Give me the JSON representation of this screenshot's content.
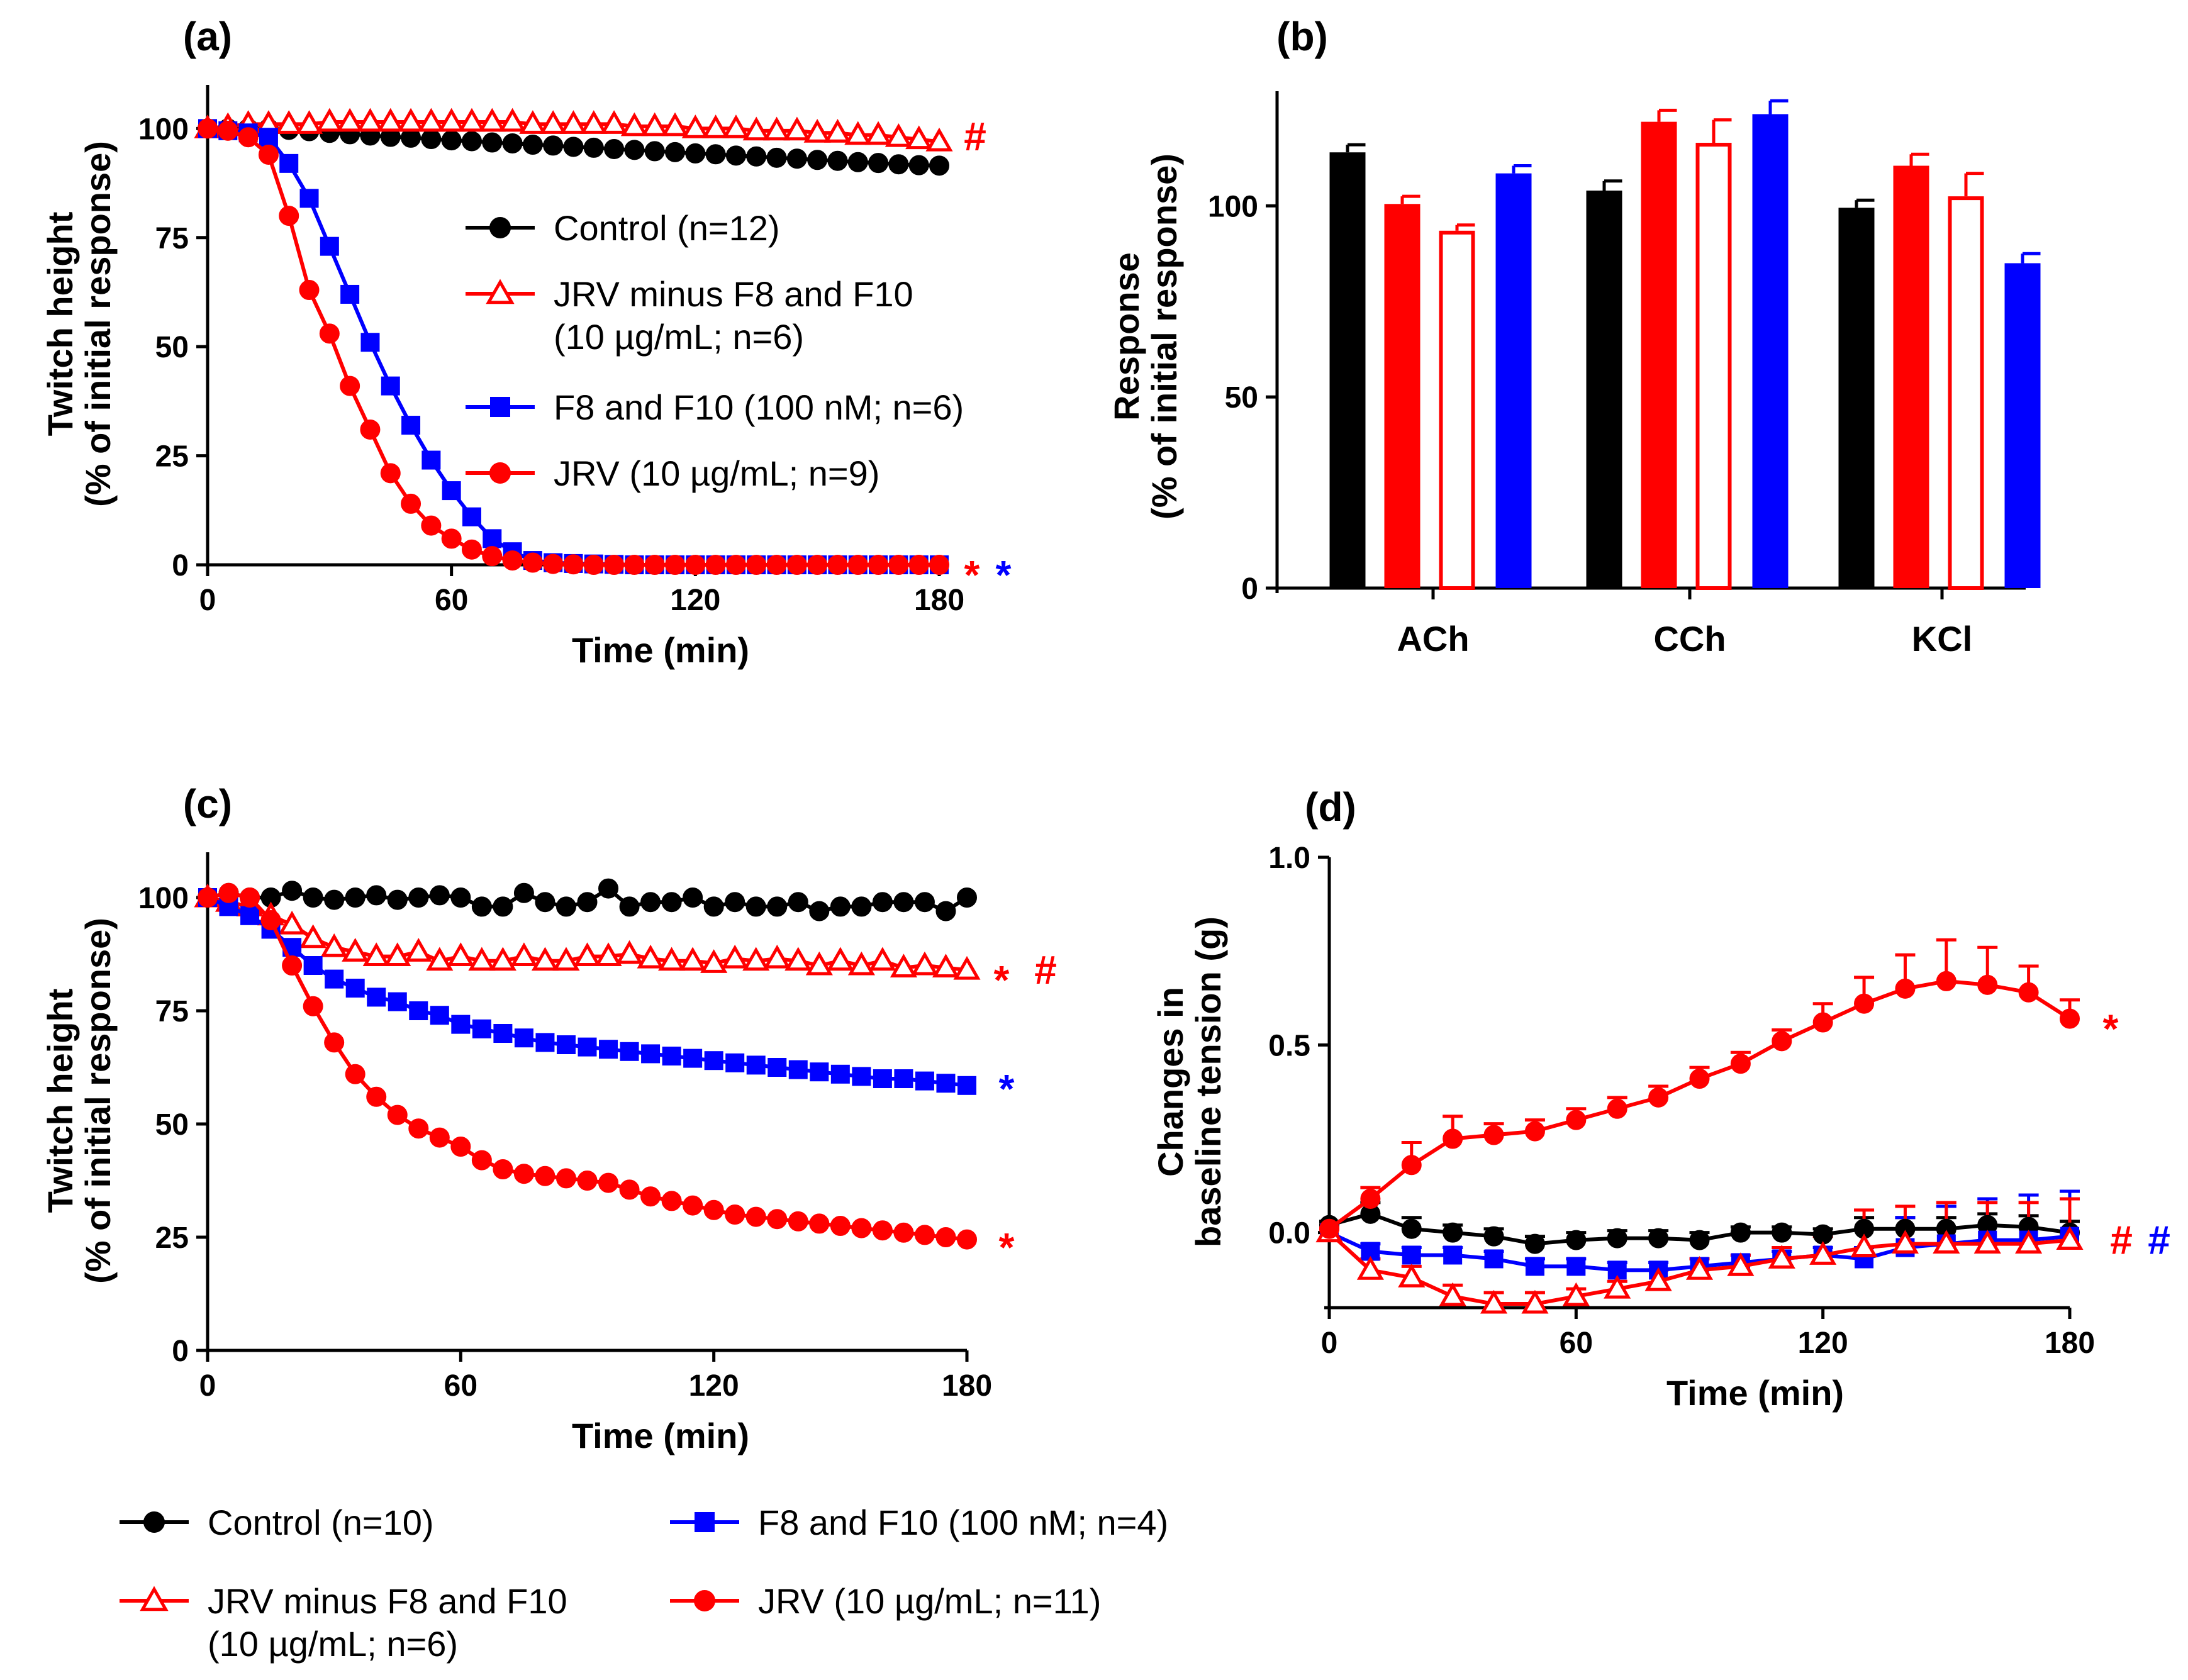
{
  "colors": {
    "black": "#000000",
    "red": "#ff0000",
    "blue": "#0000ff"
  },
  "chart_data": [
    {
      "panel": "(a)",
      "type": "line",
      "xlabel": "Time (min)",
      "ylabel": [
        "Twitch height",
        "(% of initial response)"
      ],
      "xlim": [
        0,
        180
      ],
      "ylim": [
        0,
        110
      ],
      "xticks": [
        "0",
        "60",
        "120",
        "180"
      ],
      "yticks": [
        "0",
        "25",
        "50",
        "75",
        "100"
      ],
      "x": [
        0,
        5,
        10,
        15,
        20,
        25,
        30,
        35,
        40,
        45,
        50,
        55,
        60,
        65,
        70,
        75,
        80,
        85,
        90,
        95,
        100,
        105,
        110,
        115,
        120,
        125,
        130,
        135,
        140,
        145,
        150,
        155,
        160,
        165,
        170,
        175,
        180
      ],
      "legend": [
        {
          "label": "Control (n=12)",
          "marker": "circle",
          "color": "#000000"
        },
        {
          "label": [
            "JRV minus F8 and F10",
            "(10 µg/mL; n=6)"
          ],
          "marker": "triangle-open",
          "color": "#ff0000"
        },
        {
          "label": "F8 and F10 (100 nM; n=6)",
          "marker": "square",
          "color": "#0000ff"
        },
        {
          "label": "JRV (10 µg/mL; n=9)",
          "marker": "circle",
          "color": "#ff0000"
        }
      ],
      "series": [
        {
          "name": "Control (n=12)",
          "color": "#000000",
          "marker": "circle",
          "values": [
            100,
            100,
            100,
            100,
            99.7,
            99.4,
            99,
            98.7,
            98.4,
            98.1,
            97.9,
            97.6,
            97.3,
            97.1,
            96.8,
            96.6,
            96.3,
            96.1,
            95.8,
            95.6,
            95.3,
            95.1,
            94.8,
            94.6,
            94.3,
            94.1,
            93.8,
            93.6,
            93.3,
            93.1,
            92.8,
            92.6,
            92.3,
            92.1,
            91.8,
            91.6,
            91.5
          ]
        },
        {
          "name": "JRV minus F8 and F10",
          "color": "#ff0000",
          "marker": "triangle-open",
          "values": [
            100,
            100.5,
            101,
            101,
            101,
            101,
            101.5,
            101.5,
            101.5,
            101.5,
            101.5,
            101.5,
            101.5,
            101.5,
            101.5,
            101.5,
            101,
            101,
            101,
            101,
            101,
            100.5,
            100.5,
            100.5,
            100,
            100,
            100,
            99.5,
            99.5,
            99.5,
            99,
            99,
            98.5,
            98.5,
            98,
            97.5,
            97
          ]
        },
        {
          "name": "F8 and F10 (100 nM; n=6)",
          "color": "#0000ff",
          "marker": "square",
          "values": [
            100,
            99.5,
            99,
            98,
            92,
            84,
            73,
            62,
            51,
            41,
            32,
            24,
            17,
            11,
            6,
            3,
            1,
            0.5,
            0.3,
            0.2,
            0.1,
            0,
            0,
            0,
            0,
            0,
            0,
            0,
            0,
            0,
            0,
            0,
            0,
            0,
            0,
            0,
            0
          ]
        },
        {
          "name": "JRV (10 µg/mL; n=9)",
          "color": "#ff0000",
          "marker": "circle",
          "values": [
            100,
            99.5,
            98,
            94,
            80,
            63,
            53,
            41,
            31,
            21,
            14,
            9,
            6,
            3.5,
            2,
            1,
            0.5,
            0.2,
            0.1,
            0,
            0,
            0,
            0,
            0,
            0,
            0,
            0,
            0,
            0,
            0,
            0,
            0,
            0,
            0,
            0,
            0,
            0
          ]
        }
      ],
      "annotations": [
        {
          "text": "#",
          "color": "#ff0000",
          "y": 97
        },
        {
          "text": "*",
          "color": "#ff0000",
          "y": 0
        },
        {
          "text": "*",
          "color": "#0000ff",
          "y": 0
        }
      ]
    },
    {
      "panel": "(b)",
      "type": "bar",
      "ylabel": [
        "Response",
        "(% of initial response)"
      ],
      "ylim": [
        0,
        130
      ],
      "yticks": [
        "0",
        "50",
        "100"
      ],
      "categories": [
        "ACh",
        "CCh",
        "KCl"
      ],
      "series": [
        {
          "name": "Control",
          "color": "#000000",
          "fill": "solid",
          "values": [
            114,
            104,
            99.5
          ],
          "errors": [
            2,
            2.5,
            2
          ]
        },
        {
          "name": "JRV",
          "color": "#ff0000",
          "fill": "solid",
          "values": [
            100.5,
            122,
            110.5
          ],
          "errors": [
            2,
            3,
            3
          ]
        },
        {
          "name": "JRV minus F8 and F10",
          "color": "#ff0000",
          "fill": "open",
          "values": [
            93.5,
            116.5,
            102.5
          ],
          "errors": [
            1.5,
            6,
            6
          ]
        },
        {
          "name": "F8 and F10",
          "color": "#0000ff",
          "fill": "solid",
          "values": [
            108.5,
            124,
            85
          ],
          "errors": [
            2,
            3.5,
            2.5
          ]
        }
      ]
    },
    {
      "panel": "(c)",
      "type": "line",
      "xlabel": "Time (min)",
      "ylabel": [
        "Twitch height",
        "(% of initial response)"
      ],
      "xlim": [
        0,
        180
      ],
      "ylim": [
        0,
        110
      ],
      "xticks": [
        "0",
        "60",
        "120",
        "180"
      ],
      "yticks": [
        "0",
        "25",
        "50",
        "75",
        "100"
      ],
      "legend": [
        {
          "label": "Control (n=10)",
          "marker": "circle",
          "color": "#000000"
        },
        {
          "label": [
            "JRV minus F8 and F10",
            "(10 µg/mL; n=6)"
          ],
          "marker": "triangle-open",
          "color": "#ff0000"
        },
        {
          "label": "F8 and F10 (100 nM; n=4)",
          "marker": "square",
          "color": "#0000ff"
        },
        {
          "label": "JRV (10 µg/mL; n=11)",
          "marker": "circle",
          "color": "#ff0000"
        }
      ],
      "series": [
        {
          "name": "Control (n=10)",
          "color": "#000000",
          "marker": "circle",
          "x": [
            0,
            5,
            10,
            15,
            20,
            25,
            30,
            35,
            40,
            45,
            50,
            55,
            60,
            65,
            70,
            75,
            80,
            85,
            90,
            95,
            100,
            105,
            110,
            115,
            120,
            125,
            130,
            135,
            140,
            145,
            150,
            155,
            160,
            165,
            170,
            175,
            180
          ],
          "values": [
            100,
            101,
            100,
            100,
            101.5,
            100,
            99.5,
            100,
            100.5,
            99.5,
            100,
            100.5,
            100,
            98,
            98,
            101,
            99,
            98,
            99,
            102,
            98,
            99,
            99,
            100,
            98,
            99,
            98,
            98,
            99,
            97,
            98,
            98,
            99,
            99,
            99,
            97,
            100
          ]
        },
        {
          "name": "JRV minus F8 and F10",
          "color": "#ff0000",
          "marker": "triangle-open",
          "x": [
            0,
            5,
            10,
            15,
            20,
            25,
            30,
            35,
            40,
            45,
            50,
            55,
            60,
            65,
            70,
            75,
            80,
            85,
            90,
            95,
            100,
            105,
            110,
            115,
            120,
            125,
            130,
            135,
            140,
            145,
            150,
            155,
            160,
            165,
            170,
            175,
            180
          ],
          "values": [
            100,
            99,
            98,
            96,
            94,
            91,
            89,
            88,
            87,
            87,
            88,
            86,
            87,
            86,
            86,
            87,
            86,
            86,
            87,
            87,
            87.5,
            86.5,
            86,
            86,
            85.5,
            86.5,
            86,
            86.5,
            86,
            85,
            86,
            85,
            86,
            84.5,
            85,
            84.5,
            84
          ]
        },
        {
          "name": "F8 and F10 (100 nM; n=4)",
          "color": "#0000ff",
          "marker": "square",
          "x": [
            0,
            5,
            10,
            15,
            20,
            25,
            30,
            35,
            40,
            45,
            50,
            55,
            60,
            65,
            70,
            75,
            80,
            85,
            90,
            95,
            100,
            105,
            110,
            115,
            120,
            125,
            130,
            135,
            140,
            145,
            150,
            155,
            160,
            165,
            170,
            175,
            180
          ],
          "values": [
            100,
            98,
            96,
            93,
            89,
            85,
            82,
            80,
            78,
            77,
            75,
            74,
            72,
            71,
            70,
            69,
            68,
            67.5,
            67,
            66.5,
            66,
            65.5,
            65,
            64.5,
            64,
            63.5,
            63,
            62.5,
            62,
            61.5,
            61,
            60.5,
            60,
            60,
            59.5,
            59,
            58.5
          ]
        },
        {
          "name": "JRV (10 µg/mL; n=11)",
          "color": "#ff0000",
          "marker": "circle",
          "x": [
            0,
            5,
            10,
            15,
            20,
            25,
            30,
            35,
            40,
            45,
            50,
            55,
            60,
            65,
            70,
            75,
            80,
            85,
            90,
            95,
            100,
            105,
            110,
            115,
            120,
            125,
            130,
            135,
            140,
            145,
            150,
            155,
            160,
            165,
            170,
            175,
            180
          ],
          "values": [
            100,
            101,
            100,
            95,
            85,
            76,
            68,
            61,
            56,
            52,
            49,
            47,
            45,
            42,
            40,
            39,
            38.5,
            38,
            37.5,
            37,
            35.5,
            34,
            33,
            32,
            31,
            30,
            29.5,
            29,
            28.5,
            28,
            27.5,
            27,
            26.5,
            26,
            25.5,
            25,
            24.5
          ]
        }
      ],
      "annotations": [
        {
          "text": "*",
          "color": "#ff0000",
          "y": 84
        },
        {
          "text": "#",
          "color": "#ff0000",
          "y": 84
        },
        {
          "text": "*",
          "color": "#0000ff",
          "y": 60
        },
        {
          "text": "*",
          "color": "#ff0000",
          "y": 25
        }
      ]
    },
    {
      "panel": "(d)",
      "type": "line",
      "xlabel": "Time (min)",
      "ylabel": [
        "Changes in",
        "baseline tension (g)"
      ],
      "xlim": [
        0,
        180
      ],
      "ylim": [
        -0.2,
        1.0
      ],
      "xticks": [
        "0",
        "60",
        "120",
        "180"
      ],
      "yticks": [
        "0.0",
        "0.5",
        "1.0"
      ],
      "x": [
        0,
        10,
        20,
        30,
        40,
        50,
        60,
        70,
        80,
        90,
        100,
        110,
        120,
        130,
        140,
        150,
        160,
        170,
        180
      ],
      "series": [
        {
          "name": "Control",
          "color": "#000000",
          "marker": "circle",
          "values": [
            0.02,
            0.05,
            0.01,
            0,
            -0.01,
            -0.03,
            -0.02,
            -0.015,
            -0.015,
            -0.02,
            0,
            0,
            -0.005,
            0.01,
            0.01,
            0.01,
            0.02,
            0.015,
            0
          ],
          "errors": [
            0.01,
            0.03,
            0.03,
            0.02,
            0.02,
            0.02,
            0.02,
            0.02,
            0.02,
            0.02,
            0.015,
            0.015,
            0.015,
            0.03,
            0.03,
            0.03,
            0.03,
            0.03,
            0.03
          ]
        },
        {
          "name": "F8 and F10",
          "color": "#0000ff",
          "marker": "square",
          "values": [
            0,
            -0.05,
            -0.06,
            -0.06,
            -0.07,
            -0.09,
            -0.09,
            -0.1,
            -0.1,
            -0.09,
            -0.08,
            -0.07,
            -0.06,
            -0.07,
            -0.04,
            -0.03,
            -0.02,
            -0.02,
            -0.01
          ],
          "errors": [
            0.01,
            0.02,
            0.02,
            0.02,
            0.02,
            0.02,
            0.02,
            0.02,
            0.02,
            0.02,
            0.02,
            0.02,
            0.02,
            0.03,
            0.08,
            0.1,
            0.11,
            0.12,
            0.12
          ]
        },
        {
          "name": "JRV minus F8 and F10",
          "color": "#ff0000",
          "marker": "triangle-open",
          "values": [
            0,
            -0.1,
            -0.12,
            -0.17,
            -0.19,
            -0.19,
            -0.17,
            -0.15,
            -0.13,
            -0.1,
            -0.09,
            -0.07,
            -0.06,
            -0.04,
            -0.03,
            -0.03,
            -0.03,
            -0.03,
            -0.02
          ],
          "errors": [
            0.01,
            0.03,
            0.03,
            0.03,
            0.03,
            0.03,
            0.02,
            0.02,
            0.03,
            0.03,
            0.03,
            0.03,
            0.05,
            0.1,
            0.1,
            0.11,
            0.11,
            0.11,
            0.11
          ]
        },
        {
          "name": "JRV",
          "color": "#ff0000",
          "marker": "circle",
          "values": [
            0.01,
            0.09,
            0.18,
            0.25,
            0.26,
            0.27,
            0.3,
            0.33,
            0.36,
            0.41,
            0.45,
            0.51,
            0.56,
            0.61,
            0.65,
            0.67,
            0.66,
            0.64,
            0.57
          ],
          "errors": [
            0.01,
            0.03,
            0.06,
            0.06,
            0.03,
            0.03,
            0.03,
            0.03,
            0.03,
            0.03,
            0.03,
            0.03,
            0.05,
            0.07,
            0.09,
            0.11,
            0.1,
            0.07,
            0.05
          ]
        }
      ],
      "annotations": [
        {
          "text": "*",
          "color": "#ff0000",
          "y": 0.57
        },
        {
          "text": "#",
          "color": "#ff0000",
          "y": -0.02
        },
        {
          "text": "#",
          "color": "#0000ff",
          "y": -0.02
        }
      ]
    }
  ]
}
